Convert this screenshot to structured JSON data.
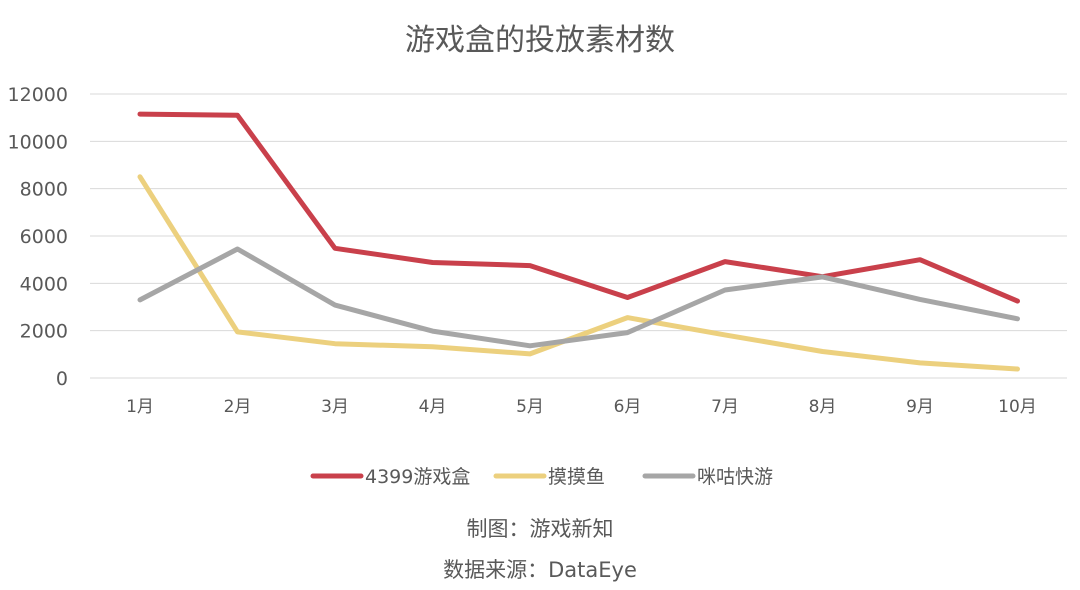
{
  "chart_data": {
    "type": "line",
    "title": "游戏盒的投放素材数",
    "categories": [
      "1月",
      "2月",
      "3月",
      "4月",
      "5月",
      "6月",
      "7月",
      "8月",
      "9月",
      "10月"
    ],
    "ylim": [
      0,
      12000
    ],
    "yticks": [
      0,
      2000,
      4000,
      6000,
      8000,
      10000,
      12000
    ],
    "grid": true,
    "legend_position": "bottom",
    "series": [
      {
        "name": "4399游戏盒",
        "color": "#c9404b",
        "values": [
          11150,
          11100,
          5480,
          4880,
          4750,
          3400,
          4920,
          4280,
          5000,
          3250
        ]
      },
      {
        "name": "摸摸鱼",
        "color": "#ecd07e",
        "values": [
          8500,
          1950,
          1450,
          1320,
          1020,
          2550,
          1820,
          1120,
          640,
          380
        ]
      },
      {
        "name": "咪咕快游",
        "color": "#a6a6a6",
        "values": [
          3300,
          5450,
          3080,
          1980,
          1360,
          1920,
          3720,
          4270,
          3320,
          2500
        ]
      }
    ]
  },
  "footer": {
    "credit": "制图：游戏新知",
    "source": "数据来源：DataEye"
  }
}
